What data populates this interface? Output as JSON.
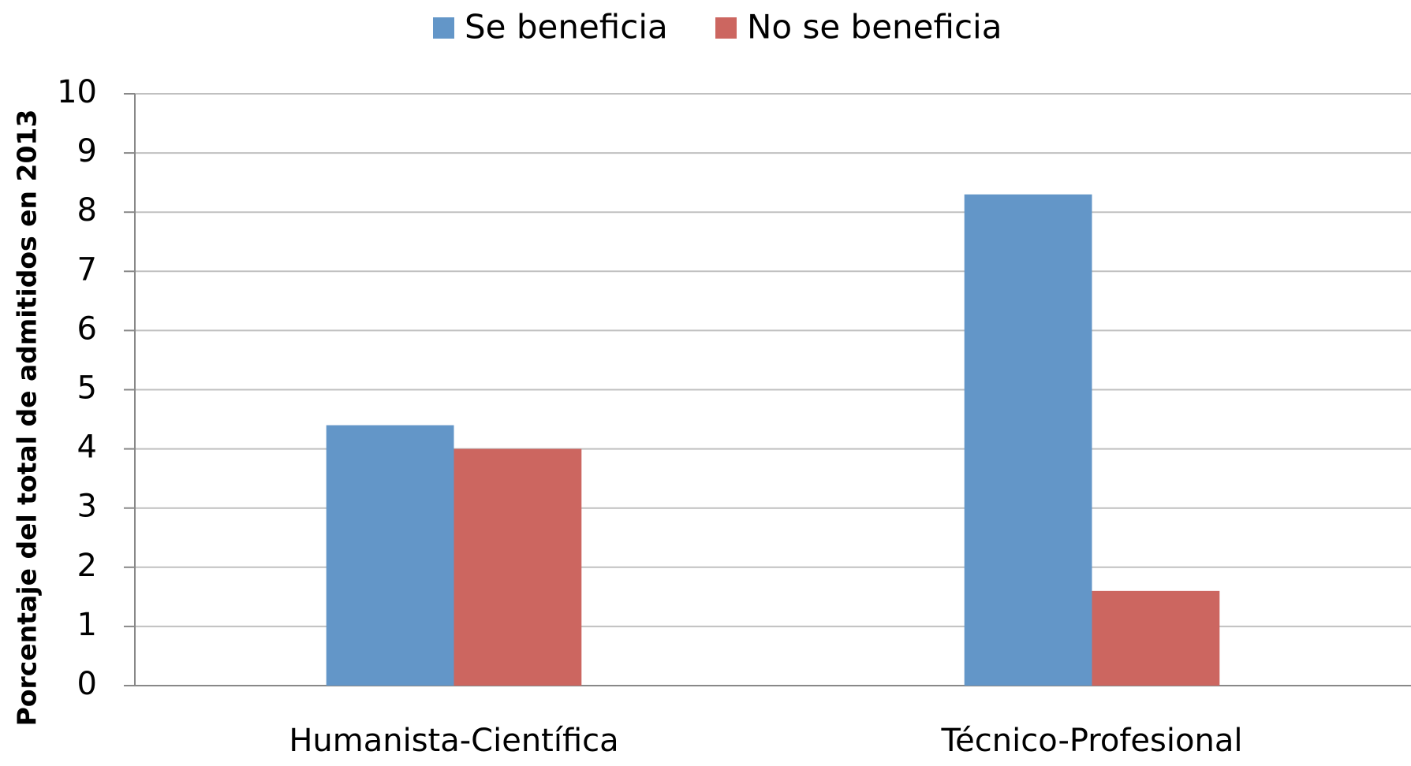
{
  "chart_data": {
    "type": "bar",
    "y_label": "Porcentaje del total de admitidos en 2013",
    "categories": [
      "Humanista-Científica",
      "Técnico-Profesional"
    ],
    "series": [
      {
        "name": "Se beneficia",
        "color": "#6396c8",
        "values": [
          4.4,
          8.3
        ]
      },
      {
        "name": "No se beneficia",
        "color": "#cc6660",
        "values": [
          4.0,
          1.6
        ]
      }
    ],
    "ylim": [
      0,
      10
    ],
    "yticks": [
      0,
      1,
      2,
      3,
      4,
      5,
      6,
      7,
      8,
      9,
      10
    ],
    "grid": true,
    "legend": "top"
  }
}
